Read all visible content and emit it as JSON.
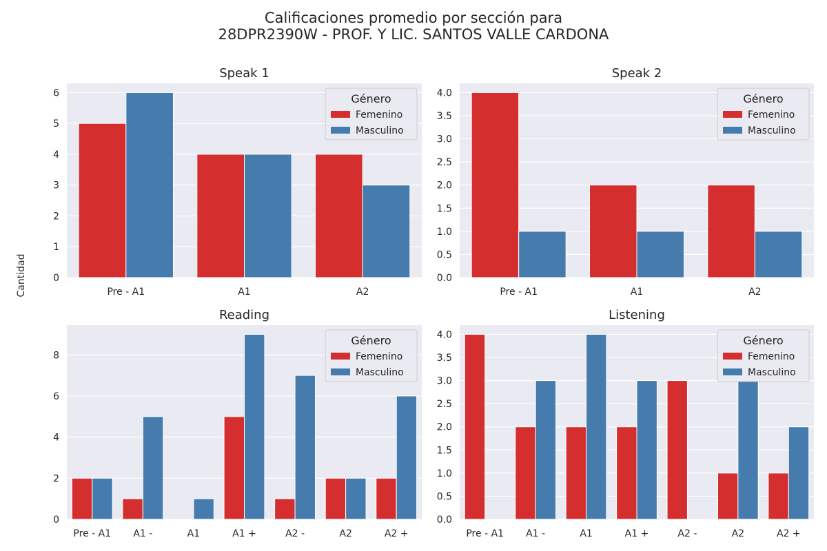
{
  "figure": {
    "title_line1": "Calificaciones promedio por sección para",
    "title_line2": "28DPR2390W - PROF. Y LIC. SANTOS VALLE CARDONA",
    "shared_ylabel": "Cantidad"
  },
  "colors": {
    "femenino": "#d52e2f",
    "masculino": "#457cad",
    "plot_bg": "#eaeaf2",
    "grid": "#ffffff",
    "text": "#262626"
  },
  "chart_data": [
    {
      "type": "bar",
      "title": "Speak 1",
      "categories": [
        "Pre - A1",
        "A1",
        "A2"
      ],
      "series": [
        {
          "name": "Femenino",
          "values": [
            5,
            4,
            4
          ]
        },
        {
          "name": "Masculino",
          "values": [
            6,
            4,
            3
          ]
        }
      ],
      "ylim": [
        0,
        6.3
      ],
      "yticks": [
        "0",
        "1",
        "2",
        "3",
        "4",
        "5",
        "6"
      ],
      "legend": {
        "title": "Género",
        "position": "top-right"
      }
    },
    {
      "type": "bar",
      "title": "Speak 2",
      "categories": [
        "Pre - A1",
        "A1",
        "A2"
      ],
      "series": [
        {
          "name": "Femenino",
          "values": [
            4,
            2,
            2
          ]
        },
        {
          "name": "Masculino",
          "values": [
            1,
            1,
            1
          ]
        }
      ],
      "ylim": [
        0,
        4.2
      ],
      "yticks": [
        "0.0",
        "0.5",
        "1.0",
        "1.5",
        "2.0",
        "2.5",
        "3.0",
        "3.5",
        "4.0"
      ],
      "legend": {
        "title": "Género",
        "position": "top-right"
      }
    },
    {
      "type": "bar",
      "title": "Reading",
      "categories": [
        "Pre - A1",
        "A1 -",
        "A1",
        "A1 +",
        "A2 -",
        "A2",
        "A2 +"
      ],
      "series": [
        {
          "name": "Femenino",
          "values": [
            2,
            1,
            0,
            5,
            1,
            2,
            2
          ]
        },
        {
          "name": "Masculino",
          "values": [
            2,
            5,
            1,
            9,
            7,
            2,
            6
          ]
        }
      ],
      "ylim": [
        0,
        9.45
      ],
      "yticks": [
        "0",
        "2",
        "4",
        "6",
        "8"
      ],
      "legend": {
        "title": "Género",
        "position": "top-right"
      }
    },
    {
      "type": "bar",
      "title": "Listening",
      "categories": [
        "Pre - A1",
        "A1 -",
        "A1",
        "A1 +",
        "A2 -",
        "A2",
        "A2 +"
      ],
      "series": [
        {
          "name": "Femenino",
          "values": [
            4,
            2,
            2,
            2,
            3,
            1,
            1
          ]
        },
        {
          "name": "Masculino",
          "values": [
            0,
            3,
            4,
            3,
            0,
            3,
            2
          ]
        }
      ],
      "ylim": [
        0,
        4.2
      ],
      "yticks": [
        "0.0",
        "0.5",
        "1.0",
        "1.5",
        "2.0",
        "2.5",
        "3.0",
        "3.5",
        "4.0"
      ],
      "legend": {
        "title": "Género",
        "position": "top-right"
      }
    }
  ]
}
